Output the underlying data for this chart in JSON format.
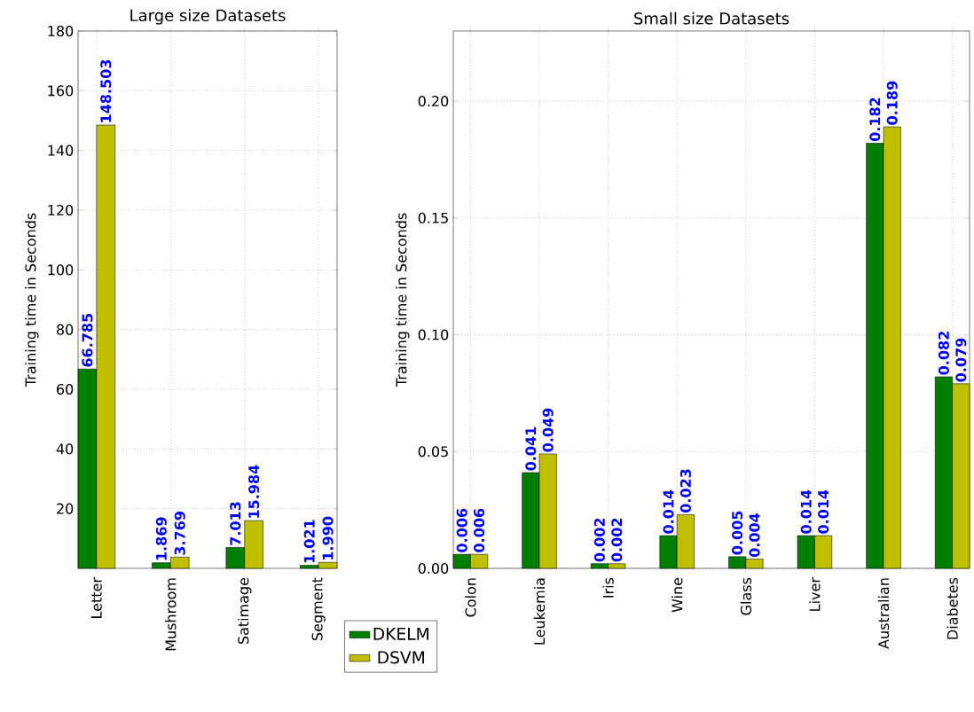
{
  "chart_data": [
    {
      "type": "bar",
      "title": "Large size  Datasets",
      "ylabel": "Training time in Seconds",
      "categories": [
        "Letter",
        "Mushroom",
        "Satimage",
        "Segment"
      ],
      "series": [
        {
          "color": "#007f00",
          "values": [
            66.785,
            1.869,
            7.013,
            1.021
          ],
          "value_labels": [
            "66.785",
            "1.869",
            "7.013",
            "1.021"
          ]
        },
        {
          "color": "#bfbf00",
          "values": [
            148.503,
            3.769,
            15.984,
            1.99
          ],
          "value_labels": [
            "148.503",
            "3.769",
            "15.984",
            "1.990"
          ]
        }
      ],
      "ylim": [
        0,
        180
      ],
      "yticks": [
        20,
        40,
        60,
        80,
        100,
        120,
        140,
        160,
        180
      ],
      "grid": true
    },
    {
      "type": "bar",
      "title": "Small size  Datasets",
      "ylabel": "Training time in Seconds",
      "categories": [
        "Colon",
        "Leukemia",
        "Iris",
        "Wine",
        "Glass",
        "Liver",
        "Australian",
        "Diabetes"
      ],
      "series": [
        {
          "name": "DKELM",
          "color": "#007f00",
          "values": [
            0.006,
            0.041,
            0.002,
            0.014,
            0.005,
            0.014,
            0.182,
            0.082
          ],
          "value_labels": [
            "0.006",
            "0.041",
            "0.002",
            "0.014",
            "0.005",
            "0.014",
            "0.182",
            "0.082"
          ]
        },
        {
          "name": "DSVM",
          "color": "#bfbf00",
          "values": [
            0.006,
            0.049,
            0.002,
            0.023,
            0.004,
            0.014,
            0.189,
            0.079
          ],
          "value_labels": [
            "0.006",
            "0.049",
            "0.002",
            "0.023",
            "0.004",
            "0.014",
            "0.189",
            "0.079"
          ]
        }
      ],
      "ylim": [
        0,
        0.23
      ],
      "yticks": [
        {
          "value": 0,
          "label": "0.00"
        },
        {
          "value": 0.05,
          "label": "0.05"
        },
        {
          "value": 0.1,
          "label": "0.10"
        },
        {
          "value": 0.15,
          "label": "0.15"
        },
        {
          "value": 0.2,
          "label": "0.20"
        }
      ],
      "grid": true,
      "legend": "bottom left"
    }
  ]
}
